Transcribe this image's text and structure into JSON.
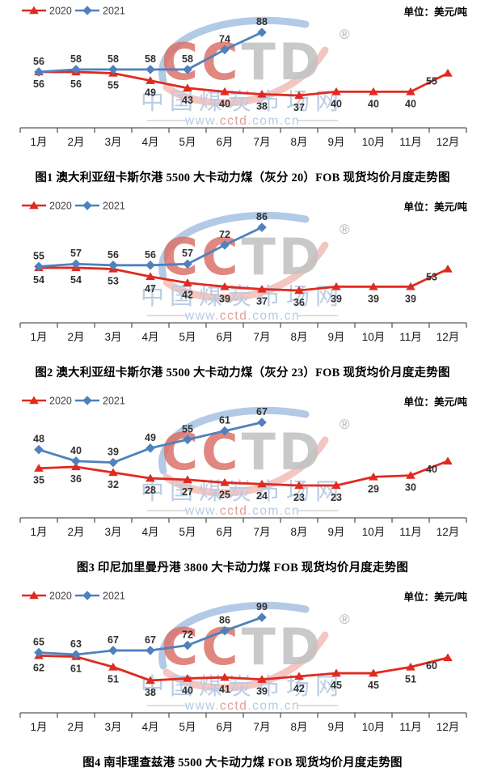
{
  "page": {
    "background": "#ffffff"
  },
  "watermark": {
    "logo_text_primary": "CC",
    "logo_text_secondary": "TD",
    "registered_mark": "®",
    "site_name": "中国煤炭市场网",
    "site_url_prefix": "www.",
    "site_url_brand": "cctd",
    "site_url_suffix": ".com.cn",
    "logo_red": "#d45a50",
    "logo_gray": "#b9b9b9",
    "arc_blue": "#8fb2d8",
    "arc_red": "#e9988f",
    "text_blue": "#aac1de",
    "text_red": "#dd8f85",
    "dash_gray": "#d9d9d9"
  },
  "colors": {
    "series_2020": "#e02a20",
    "series_2021": "#4f81bd",
    "data_label": "#303030",
    "axis": "#595959",
    "month_label": "#1a1a1a",
    "legend_text": "#404040",
    "unit_text": "#000000"
  },
  "months": [
    "1月",
    "2月",
    "3月",
    "4月",
    "5月",
    "6月",
    "7月",
    "8月",
    "9月",
    "10月",
    "11月",
    "12月"
  ],
  "chart_data": [
    {
      "type": "line",
      "title": "图1 澳大利亚纽卡斯尔港 5500 大卡动力煤（灰分 20）FOB 现货均价月度走势图",
      "unit_label": "单位：美元/吨",
      "legend_position": "top-left",
      "grid": false,
      "categories": [
        "1月",
        "2月",
        "3月",
        "4月",
        "5月",
        "6月",
        "7月",
        "8月",
        "9月",
        "10月",
        "11月",
        "12月"
      ],
      "ylim": [
        37,
        88
      ],
      "series": [
        {
          "name": "2020",
          "color": "#e02a20",
          "marker": "triangle",
          "values": [
            56,
            56,
            55,
            49,
            43,
            40,
            38,
            37,
            40,
            40,
            40,
            55
          ]
        },
        {
          "name": "2021",
          "color": "#4f81bd",
          "marker": "diamond",
          "values": [
            56,
            58,
            58,
            58,
            58,
            74,
            88
          ]
        }
      ]
    },
    {
      "type": "line",
      "title": "图2 澳大利亚纽卡斯尔港 5500 大卡动力煤（灰分 23）FOB 现货均价月度走势图",
      "unit_label": "单位：美元/吨",
      "legend_position": "top-left",
      "grid": false,
      "categories": [
        "1月",
        "2月",
        "3月",
        "4月",
        "5月",
        "6月",
        "7月",
        "8月",
        "9月",
        "10月",
        "11月",
        "12月"
      ],
      "ylim": [
        36,
        86
      ],
      "series": [
        {
          "name": "2020",
          "color": "#e02a20",
          "marker": "triangle",
          "values": [
            54,
            54,
            53,
            47,
            42,
            39,
            37,
            36,
            39,
            39,
            39,
            53
          ]
        },
        {
          "name": "2021",
          "color": "#4f81bd",
          "marker": "diamond",
          "values": [
            55,
            57,
            56,
            56,
            57,
            72,
            86
          ]
        }
      ]
    },
    {
      "type": "line",
      "title": "图3 印尼加里曼丹港 3800 大卡动力煤 FOB 现货均价月度走势图",
      "unit_label": "单位：美元/吨",
      "legend_position": "top-left",
      "grid": false,
      "categories": [
        "1月",
        "2月",
        "3月",
        "4月",
        "5月",
        "6月",
        "7月",
        "8月",
        "9月",
        "10月",
        "11月",
        "12月"
      ],
      "ylim": [
        23,
        67
      ],
      "series": [
        {
          "name": "2020",
          "color": "#e02a20",
          "marker": "triangle",
          "values": [
            35,
            36,
            32,
            28,
            27,
            25,
            24,
            23,
            23,
            29,
            30,
            40
          ]
        },
        {
          "name": "2021",
          "color": "#4f81bd",
          "marker": "diamond",
          "values": [
            48,
            40,
            39,
            49,
            55,
            61,
            67
          ]
        }
      ]
    },
    {
      "type": "line",
      "title": "图4 南非理查兹港 5500 大卡动力煤 FOB 现货均价月度走势图",
      "unit_label": "单位：美元/吨",
      "legend_position": "top-left",
      "grid": false,
      "categories": [
        "1月",
        "2月",
        "3月",
        "4月",
        "5月",
        "6月",
        "7月",
        "8月",
        "9月",
        "10月",
        "11月",
        "12月"
      ],
      "ylim": [
        38,
        99
      ],
      "series": [
        {
          "name": "2020",
          "color": "#e02a20",
          "marker": "triangle",
          "values": [
            62,
            61,
            51,
            38,
            40,
            41,
            39,
            42,
            45,
            45,
            51,
            60
          ]
        },
        {
          "name": "2021",
          "color": "#4f81bd",
          "marker": "diamond",
          "values": [
            65,
            63,
            67,
            67,
            72,
            86,
            99
          ]
        }
      ]
    }
  ]
}
